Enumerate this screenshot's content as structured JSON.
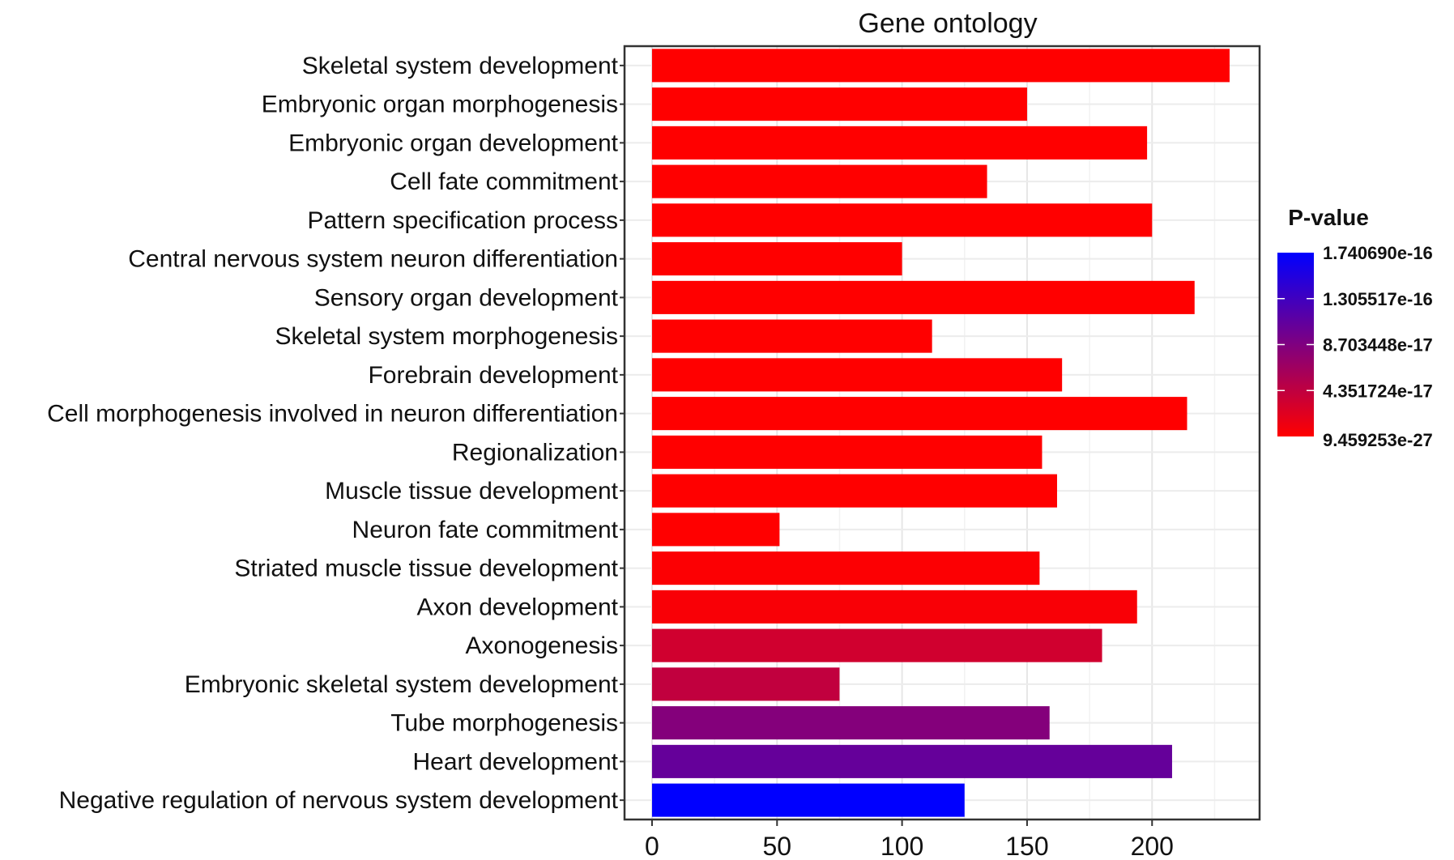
{
  "chart_data": {
    "type": "bar",
    "orientation": "horizontal",
    "title": "Gene ontology",
    "xlabel": "",
    "ylabel": "",
    "xlim": [
      -11,
      243
    ],
    "x_ticks": [
      0,
      50,
      100,
      150,
      200
    ],
    "grid": true,
    "categories": [
      "Skeletal system development",
      "Embryonic organ morphogenesis",
      "Embryonic organ development",
      "Cell fate commitment",
      "Pattern specification process",
      "Central nervous system neuron differentiation",
      "Sensory organ development",
      "Skeletal system morphogenesis",
      "Forebrain development",
      "Cell morphogenesis involved in neuron differentiation",
      "Regionalization",
      "Muscle tissue development",
      "Neuron fate commitment",
      "Striated muscle tissue development",
      "Axon development",
      "Axonogenesis",
      "Embryonic skeletal system development",
      "Tube morphogenesis",
      "Heart development",
      "Negative regulation of nervous system development"
    ],
    "values": [
      231,
      150,
      198,
      134,
      200,
      100,
      217,
      112,
      164,
      214,
      156,
      162,
      51,
      155,
      194,
      180,
      75,
      159,
      208,
      125
    ],
    "p_values": [
      1e-27,
      1e-27,
      1e-27,
      1e-27,
      1e-27,
      1e-27,
      1e-27,
      1e-27,
      1e-27,
      1e-27,
      1e-27,
      1e-27,
      1e-27,
      2e-18,
      4e-18,
      3.2e-17,
      4.2e-17,
      8.4e-17,
      1.05e-16,
      1.74069e-16
    ],
    "legend": {
      "title": "P-value",
      "placement": "right",
      "labels": [
        "1.740690e-16",
        "1.305517e-16",
        "8.703448e-17",
        "4.351724e-17",
        "9.459253e-27"
      ],
      "color_low": "#ff0000",
      "color_high": "#0000ff"
    }
  }
}
